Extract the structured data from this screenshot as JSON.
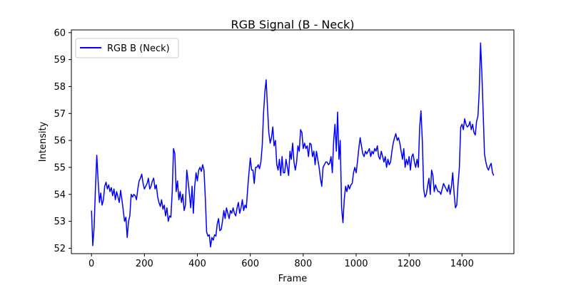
{
  "chart_data": {
    "type": "line",
    "title": "RGB Signal (B - Neck)",
    "xlabel": "Frame",
    "ylabel": "Intensity",
    "xlim": [
      -76,
      1596
    ],
    "ylim": [
      51.8,
      60.1
    ],
    "xticks": [
      0,
      200,
      400,
      600,
      800,
      1000,
      1200,
      1400
    ],
    "yticks": [
      52,
      53,
      54,
      55,
      56,
      57,
      58,
      59,
      60
    ],
    "legend": {
      "position": "top-left"
    },
    "grid": false,
    "series": [
      {
        "name": "RGB B (Neck)",
        "color": "#0000ff",
        "x": [
          0,
          5,
          10,
          15,
          20,
          25,
          30,
          35,
          40,
          45,
          50,
          55,
          60,
          65,
          70,
          75,
          80,
          85,
          90,
          95,
          100,
          105,
          110,
          115,
          120,
          125,
          130,
          135,
          140,
          145,
          150,
          155,
          160,
          165,
          170,
          175,
          180,
          185,
          190,
          195,
          200,
          205,
          210,
          215,
          220,
          225,
          230,
          235,
          240,
          245,
          250,
          255,
          260,
          265,
          270,
          275,
          280,
          285,
          290,
          295,
          300,
          305,
          310,
          315,
          320,
          325,
          330,
          335,
          340,
          345,
          350,
          355,
          360,
          365,
          370,
          375,
          380,
          385,
          390,
          395,
          400,
          405,
          410,
          415,
          420,
          425,
          430,
          435,
          440,
          445,
          450,
          455,
          460,
          465,
          470,
          475,
          480,
          485,
          490,
          495,
          500,
          505,
          510,
          515,
          520,
          525,
          530,
          535,
          540,
          545,
          550,
          555,
          560,
          565,
          570,
          575,
          580,
          585,
          590,
          595,
          600,
          605,
          610,
          615,
          620,
          625,
          630,
          635,
          640,
          645,
          650,
          655,
          660,
          665,
          670,
          675,
          680,
          685,
          690,
          695,
          700,
          705,
          710,
          715,
          720,
          725,
          730,
          735,
          740,
          745,
          750,
          755,
          760,
          765,
          770,
          775,
          780,
          785,
          790,
          795,
          800,
          805,
          810,
          815,
          820,
          825,
          830,
          835,
          840,
          845,
          850,
          855,
          860,
          865,
          870,
          875,
          880,
          885,
          890,
          895,
          900,
          905,
          910,
          915,
          920,
          925,
          930,
          935,
          940,
          945,
          950,
          955,
          960,
          965,
          970,
          975,
          980,
          985,
          990,
          995,
          1000,
          1005,
          1010,
          1015,
          1020,
          1025,
          1030,
          1035,
          1040,
          1045,
          1050,
          1055,
          1060,
          1065,
          1070,
          1075,
          1080,
          1085,
          1090,
          1095,
          1100,
          1105,
          1110,
          1115,
          1120,
          1125,
          1130,
          1135,
          1140,
          1145,
          1150,
          1155,
          1160,
          1165,
          1170,
          1175,
          1180,
          1185,
          1190,
          1195,
          1200,
          1205,
          1210,
          1215,
          1220,
          1225,
          1230,
          1235,
          1240,
          1245,
          1250,
          1255,
          1260,
          1265,
          1270,
          1275,
          1280,
          1285,
          1290,
          1295,
          1300,
          1305,
          1310,
          1315,
          1320,
          1325,
          1330,
          1335,
          1340,
          1345,
          1350,
          1355,
          1360,
          1365,
          1370,
          1375,
          1380,
          1385,
          1390,
          1395,
          1400,
          1405,
          1410,
          1415,
          1420,
          1425,
          1430,
          1435,
          1440,
          1445,
          1450,
          1455,
          1460,
          1465,
          1470,
          1475,
          1480,
          1485,
          1490,
          1495,
          1500,
          1505,
          1510,
          1515,
          1520
        ],
        "values": [
          53.4,
          52.1,
          52.8,
          54.2,
          55.45,
          54.5,
          53.7,
          54.05,
          53.6,
          53.8,
          54.3,
          54.45,
          54.2,
          54.35,
          54.1,
          54.25,
          53.95,
          54.2,
          53.8,
          54.1,
          53.9,
          53.7,
          54.15,
          53.8,
          53.4,
          53.0,
          53.15,
          52.4,
          53.0,
          53.2,
          54.0,
          53.9,
          54.0,
          53.95,
          53.8,
          54.2,
          54.5,
          54.6,
          54.75,
          54.4,
          54.2,
          54.3,
          54.4,
          54.6,
          54.2,
          54.3,
          54.5,
          54.6,
          54.2,
          54.35,
          53.9,
          53.7,
          53.55,
          53.8,
          53.45,
          53.6,
          53.2,
          53.5,
          53.0,
          53.2,
          53.15,
          54.1,
          55.7,
          55.5,
          54.1,
          54.5,
          53.8,
          54.1,
          53.7,
          54.0,
          53.4,
          53.6,
          54.9,
          54.5,
          54.0,
          53.5,
          54.3,
          53.3,
          54.3,
          54.8,
          54.5,
          54.9,
          55.0,
          54.85,
          55.1,
          54.9,
          53.9,
          52.6,
          52.45,
          52.5,
          52.05,
          52.4,
          52.3,
          52.5,
          52.45,
          52.9,
          53.1,
          52.65,
          52.7,
          53.0,
          53.4,
          53.1,
          53.5,
          53.3,
          53.1,
          53.4,
          53.3,
          53.5,
          53.3,
          53.2,
          53.5,
          53.7,
          53.3,
          53.5,
          53.8,
          53.4,
          53.6,
          53.5,
          54.2,
          54.8,
          55.35,
          54.9,
          54.9,
          54.4,
          55.0,
          55.0,
          55.1,
          54.95,
          55.2,
          55.8,
          57.0,
          57.8,
          58.25,
          57.2,
          56.3,
          55.9,
          56.1,
          56.5,
          55.8,
          56.0,
          55.1,
          54.9,
          55.3,
          54.7,
          55.4,
          54.8,
          54.8,
          55.3,
          55.0,
          54.7,
          55.6,
          55.3,
          55.9,
          55.2,
          54.9,
          55.2,
          55.8,
          55.6,
          56.4,
          56.3,
          55.7,
          55.9,
          55.7,
          55.8,
          55.4,
          55.9,
          55.85,
          55.4,
          55.6,
          55.1,
          55.6,
          55.3,
          55.0,
          54.6,
          54.3,
          55.0,
          55.1,
          55.2,
          55.2,
          55.1,
          55.15,
          55.4,
          54.8,
          56.0,
          56.6,
          55.6,
          57.05,
          55.3,
          56.0,
          53.5,
          52.95,
          53.8,
          54.3,
          54.1,
          54.35,
          54.2,
          54.35,
          54.4,
          54.8,
          55.0,
          54.8,
          55.2,
          55.7,
          56.1,
          55.8,
          55.5,
          55.4,
          55.6,
          55.5,
          55.6,
          55.7,
          55.4,
          55.6,
          55.5,
          55.7,
          55.6,
          55.8,
          55.4,
          55.3,
          55.6,
          55.4,
          55.2,
          55.4,
          55.0,
          55.3,
          55.1,
          55.2,
          55.6,
          55.9,
          56.1,
          56.25,
          56.0,
          56.1,
          55.9,
          55.6,
          55.3,
          55.7,
          55.0,
          55.3,
          55.1,
          55.4,
          54.9,
          55.4,
          55.5,
          55.2,
          55.0,
          55.3,
          55.0,
          56.5,
          57.1,
          56.0,
          54.2,
          53.9,
          54.0,
          54.3,
          54.6,
          54.0,
          54.9,
          54.7,
          54.1,
          54.35,
          54.2,
          54.1,
          54.1,
          54.0,
          54.2,
          54.4,
          54.3,
          54.2,
          54.1,
          54.35,
          54.0,
          54.3,
          54.8,
          54.05,
          53.5,
          53.6,
          54.4,
          55.0,
          56.5,
          56.6,
          56.4,
          56.8,
          56.6,
          56.5,
          56.55,
          56.7,
          56.4,
          56.6,
          56.3,
          56.2,
          56.7,
          56.9,
          57.8,
          59.62,
          58.5,
          57.0,
          55.5,
          55.2,
          55.0,
          54.9,
          55.05,
          55.15,
          54.8,
          54.7
        ]
      }
    ]
  }
}
